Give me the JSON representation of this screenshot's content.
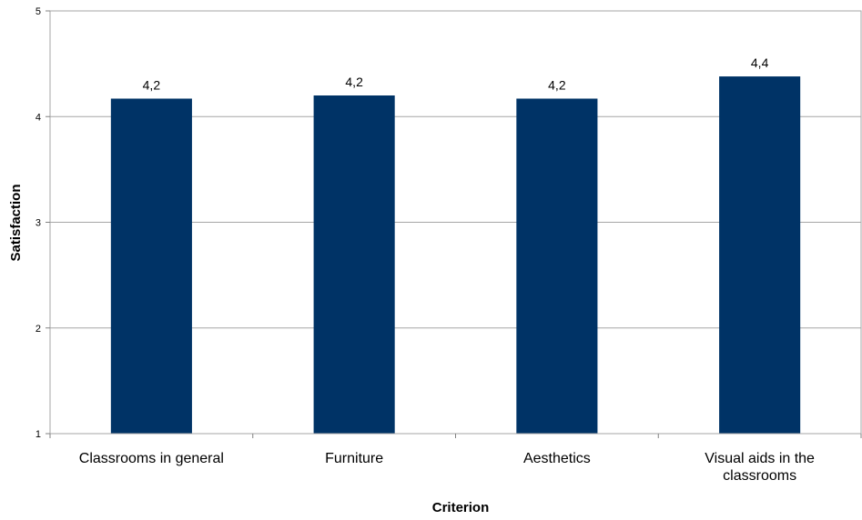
{
  "chart_data": {
    "type": "bar",
    "categories": [
      "Classrooms in general",
      "Furniture",
      "Aesthetics",
      "Visual aids in the classrooms"
    ],
    "category_lines": [
      [
        "Classrooms in general"
      ],
      [
        "Furniture"
      ],
      [
        "Aesthetics"
      ],
      [
        "Visual aids in the",
        "classrooms"
      ]
    ],
    "values": [
      4.17,
      4.2,
      4.17,
      4.38
    ],
    "data_labels": [
      "4,2",
      "4,2",
      "4,2",
      "4,4"
    ],
    "xlabel": "Criterion",
    "ylabel": "Satisfaction",
    "ylim": [
      1,
      5
    ],
    "yticks": [
      1,
      2,
      3,
      4,
      5
    ],
    "grid": true,
    "bar_color": "#003366",
    "grid_color": "#a6a6a6"
  }
}
